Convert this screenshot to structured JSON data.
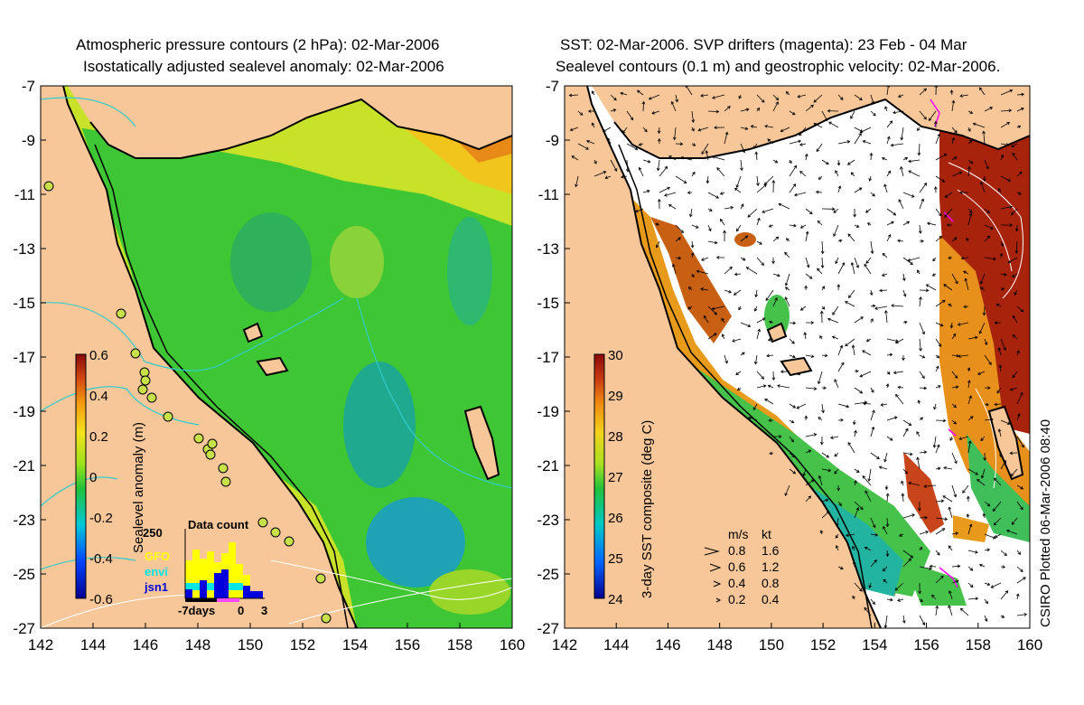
{
  "left_panel": {
    "title_line1": "Atmospheric pressure contours (2 hPa): 02-Mar-2006",
    "title_line2": "Isostatically adjusted sealevel anomaly: 02-Mar-2006",
    "colorbar_label": "Sealevel anomaly (m)",
    "colorbar_ticks": [
      "0.6",
      "0.4",
      "0.2",
      "0",
      "-0.2",
      "-0.4",
      "-0.6"
    ],
    "colorbar_range": [
      -0.6,
      0.6
    ],
    "histogram": {
      "title": "Data count",
      "ymax_label": "250",
      "xlabels": [
        "-7days",
        "0",
        "3"
      ],
      "legend": [
        {
          "label": "GFO",
          "color": "#ffff00"
        },
        {
          "label": "envi",
          "color": "#00e5e5"
        },
        {
          "label": "jsn1",
          "color": "#0000dd"
        }
      ]
    },
    "tide_gauge_color": "#c8e04a"
  },
  "right_panel": {
    "title_line1": "SST: 02-Mar-2006. SVP drifters (magenta): 23 Feb - 04 Mar",
    "title_line2": "Sealevel contours (0.1 m) and geostrophic velocity: 02-Mar-2006.",
    "colorbar_label": "3-day SST composite (deg C)",
    "colorbar_ticks": [
      "30",
      "29",
      "28",
      "27",
      "26",
      "25",
      "24"
    ],
    "colorbar_range": [
      24,
      30
    ],
    "velocity_key": {
      "header_ms": "m/s",
      "header_kt": "kt",
      "rows": [
        {
          "ms": "0.8",
          "kt": "1.6"
        },
        {
          "ms": "0.6",
          "kt": "1.2"
        },
        {
          "ms": "0.4",
          "kt": "0.8"
        },
        {
          "ms": "0.2",
          "kt": "0.4"
        }
      ]
    }
  },
  "axes": {
    "lat_labels": [
      "-7",
      "-9",
      "-11",
      "-13",
      "-15",
      "-17",
      "-19",
      "-21",
      "-23",
      "-25",
      "-27"
    ],
    "lon_labels": [
      "142",
      "144",
      "146",
      "148",
      "150",
      "152",
      "154",
      "156",
      "158",
      "160"
    ],
    "lat_range": [
      -27,
      -7
    ],
    "lon_range": [
      142,
      160
    ]
  },
  "footer": "CSIRO Plotted 06-Mar-2006 08:40",
  "colors": {
    "land": "#f7c79a",
    "coast": "#000000",
    "contour_cyan": "#33cccc",
    "contour_white": "#ffffff",
    "drifter": "#ff00ff"
  }
}
